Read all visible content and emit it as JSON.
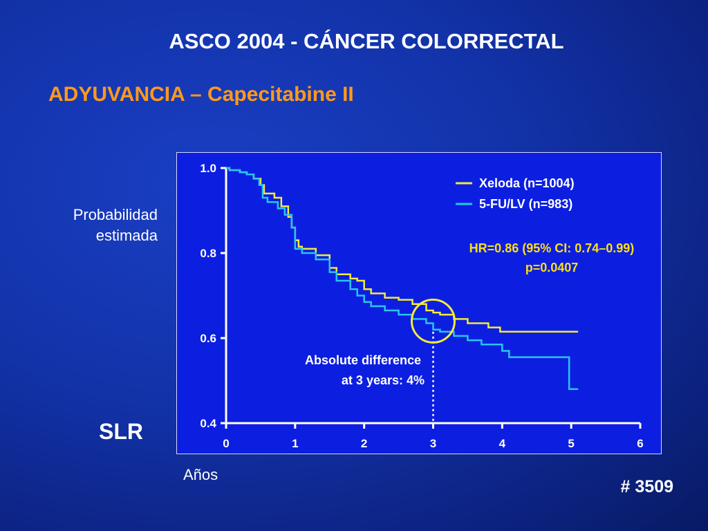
{
  "slide": {
    "title": "ASCO 2004 -  CÁNCER COLORRECTAL",
    "subtitle": "ADYUVANCIA – Capecitabine II",
    "ylabel_line1": "Probabilidad",
    "ylabel_line2": "estimada",
    "xlabel": "Años",
    "side_label": "SLR",
    "abstract_code": "# 3509"
  },
  "colors": {
    "background": "#1232a8",
    "plot_bg": "#0c1fe0",
    "subtitle": "#ff9a1a",
    "xeloda": "#f5ea3a",
    "fu": "#29c5f0",
    "hr_text": "#ffdf1a",
    "circle": "#f5ea3a"
  },
  "chart_data": {
    "type": "line",
    "step": true,
    "xlim": [
      0,
      6
    ],
    "ylim": [
      0.4,
      1.0
    ],
    "x_ticks": [
      0,
      1,
      2,
      3,
      4,
      5,
      6
    ],
    "y_ticks": [
      0.4,
      0.6,
      0.8,
      1.0
    ],
    "y_tick_labels": [
      "0.4",
      "0.6",
      "0.8",
      "1.0"
    ],
    "legend_position": "top-right",
    "series": [
      {
        "name": "Xeloda (n=1004)",
        "color": "#f5ea3a",
        "points": [
          [
            0,
            1.0
          ],
          [
            0.05,
            0.995
          ],
          [
            0.2,
            0.99
          ],
          [
            0.3,
            0.985
          ],
          [
            0.4,
            0.975
          ],
          [
            0.5,
            0.96
          ],
          [
            0.55,
            0.94
          ],
          [
            0.7,
            0.93
          ],
          [
            0.8,
            0.91
          ],
          [
            0.9,
            0.885
          ],
          [
            0.95,
            0.86
          ],
          [
            1.0,
            0.83
          ],
          [
            1.05,
            0.815
          ],
          [
            1.1,
            0.81
          ],
          [
            1.3,
            0.795
          ],
          [
            1.5,
            0.765
          ],
          [
            1.6,
            0.75
          ],
          [
            1.8,
            0.74
          ],
          [
            1.9,
            0.735
          ],
          [
            2.0,
            0.715
          ],
          [
            2.1,
            0.705
          ],
          [
            2.3,
            0.695
          ],
          [
            2.5,
            0.69
          ],
          [
            2.7,
            0.68
          ],
          [
            2.9,
            0.665
          ],
          [
            3.0,
            0.66
          ],
          [
            3.1,
            0.655
          ],
          [
            3.3,
            0.645
          ],
          [
            3.5,
            0.635
          ],
          [
            3.8,
            0.625
          ],
          [
            3.97,
            0.615
          ],
          [
            5.1,
            0.615
          ]
        ]
      },
      {
        "name": "5-FU/LV (n=983)",
        "color": "#29c5f0",
        "points": [
          [
            0,
            1.0
          ],
          [
            0.05,
            0.995
          ],
          [
            0.2,
            0.99
          ],
          [
            0.3,
            0.985
          ],
          [
            0.4,
            0.975
          ],
          [
            0.48,
            0.96
          ],
          [
            0.53,
            0.93
          ],
          [
            0.6,
            0.92
          ],
          [
            0.75,
            0.905
          ],
          [
            0.85,
            0.89
          ],
          [
            0.95,
            0.86
          ],
          [
            1.0,
            0.81
          ],
          [
            1.1,
            0.8
          ],
          [
            1.3,
            0.785
          ],
          [
            1.5,
            0.755
          ],
          [
            1.6,
            0.735
          ],
          [
            1.8,
            0.715
          ],
          [
            1.9,
            0.7
          ],
          [
            2.0,
            0.685
          ],
          [
            2.1,
            0.675
          ],
          [
            2.3,
            0.665
          ],
          [
            2.5,
            0.655
          ],
          [
            2.7,
            0.645
          ],
          [
            2.9,
            0.635
          ],
          [
            3.0,
            0.62
          ],
          [
            3.1,
            0.615
          ],
          [
            3.3,
            0.605
          ],
          [
            3.5,
            0.595
          ],
          [
            3.7,
            0.585
          ],
          [
            4.0,
            0.57
          ],
          [
            4.1,
            0.555
          ],
          [
            4.97,
            0.555
          ],
          [
            4.97,
            0.48
          ],
          [
            5.1,
            0.48
          ]
        ]
      }
    ],
    "annotations": {
      "hr_line1": "HR=0.86 (95% CI: 0.74–0.99)",
      "hr_line2": "p=0.0407",
      "diff_line1": "Absolute difference",
      "diff_line2": "at 3 years: 4%",
      "highlight_x": 3,
      "highlight_y": 0.64
    }
  }
}
